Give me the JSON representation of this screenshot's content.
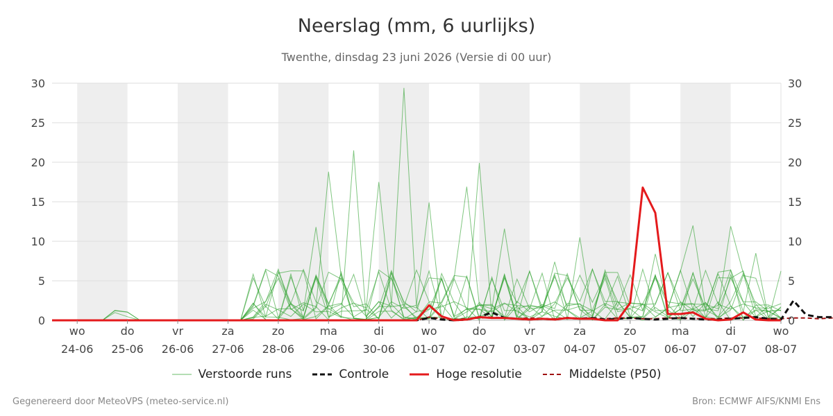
{
  "chart_data": {
    "type": "line",
    "title": "Neerslag (mm, 6 uurlijks)",
    "subtitle": "Twenthe, dinsdag 23 juni 2026 (Versie di 00 uur)",
    "ylim": [
      0,
      30
    ],
    "yticks": [
      0,
      5,
      10,
      15,
      20,
      25,
      30
    ],
    "grid": true,
    "legend_position": "bottom",
    "xlim": [
      "2026-06-23T12:00",
      "2026-07-08T00:00"
    ],
    "x_ticks": [
      {
        "day": "wo",
        "date": "24-06",
        "x": "2026-06-24T00:00"
      },
      {
        "day": "do",
        "date": "25-06",
        "x": "2026-06-25T00:00"
      },
      {
        "day": "vr",
        "date": "26-06",
        "x": "2026-06-26T00:00"
      },
      {
        "day": "za",
        "date": "27-06",
        "x": "2026-06-27T00:00"
      },
      {
        "day": "zo",
        "date": "28-06",
        "x": "2026-06-28T00:00"
      },
      {
        "day": "ma",
        "date": "29-06",
        "x": "2026-06-29T00:00"
      },
      {
        "day": "di",
        "date": "30-06",
        "x": "2026-06-30T00:00"
      },
      {
        "day": "wo",
        "date": "01-07",
        "x": "2026-07-01T00:00"
      },
      {
        "day": "do",
        "date": "02-07",
        "x": "2026-07-02T00:00"
      },
      {
        "day": "vr",
        "date": "03-07",
        "x": "2026-07-03T00:00"
      },
      {
        "day": "za",
        "date": "04-07",
        "x": "2026-07-04T00:00"
      },
      {
        "day": "zo",
        "date": "05-07",
        "x": "2026-07-05T00:00"
      },
      {
        "day": "ma",
        "date": "06-07",
        "x": "2026-07-06T00:00"
      },
      {
        "day": "di",
        "date": "07-07",
        "x": "2026-07-07T00:00"
      },
      {
        "day": "wo",
        "date": "08-07",
        "x": "2026-07-08T00:00"
      }
    ],
    "shaded_days": [
      "2026-06-24",
      "2026-06-26",
      "2026-06-28",
      "2026-06-30",
      "2026-07-02",
      "2026-07-04",
      "2026-07-06"
    ],
    "x_start": "2026-06-23T12:00",
    "x_step_hours": 6,
    "series": [
      {
        "name": "Hoge resolutie",
        "color": "#e41a1c",
        "style": "solid",
        "values": [
          0,
          0,
          0,
          0,
          0,
          0,
          0,
          0,
          0,
          0,
          0,
          0,
          0,
          0,
          0,
          0,
          0,
          0,
          0,
          0,
          0,
          0,
          0,
          0,
          0,
          0,
          0,
          0,
          0,
          0,
          1.9,
          0.5,
          0,
          0.1,
          0.4,
          0.3,
          0.3,
          0.2,
          0.1,
          0.2,
          0.1,
          0.3,
          0.2,
          0.2,
          0,
          0,
          2.2,
          16.8,
          13.6,
          0.8,
          0.8,
          1.0,
          0.2,
          0,
          0.1,
          1.0,
          0.1,
          0,
          0
        ]
      },
      {
        "name": "Controle",
        "color": "#111111",
        "style": "dashed",
        "values": [
          0,
          0,
          0,
          0,
          0,
          0,
          0,
          0,
          0,
          0,
          0,
          0,
          0,
          0,
          0,
          0,
          0,
          0,
          0,
          0,
          0,
          0,
          0,
          0,
          0,
          0,
          0,
          0,
          0,
          0,
          0.3,
          0.1,
          0,
          0.1,
          0.4,
          1.0,
          0.3,
          0.2,
          0.1,
          0.2,
          0.1,
          0.3,
          0.2,
          0.3,
          0.1,
          0.2,
          0.3,
          0.2,
          0.1,
          0.2,
          0.3,
          0.2,
          0.1,
          0.1,
          0.2,
          0.3,
          0.4,
          0.2,
          0.1,
          2.5,
          0.7,
          0.4,
          0.4,
          0.3,
          1.0,
          1.5,
          0.2,
          0.1,
          0.1,
          1.2,
          0.8,
          0.1,
          0.1,
          0.2,
          0.5,
          0.7,
          0.1,
          0.1,
          0.1,
          0.2,
          0.3
        ]
      },
      {
        "name": "Middelste (P50)",
        "color": "#a01010",
        "style": "dashed",
        "values": [
          0,
          0,
          0,
          0,
          0,
          0,
          0,
          0,
          0,
          0,
          0,
          0,
          0,
          0,
          0,
          0,
          0,
          0,
          0,
          0,
          0,
          0,
          0,
          0,
          0,
          0,
          0,
          0,
          0,
          0,
          0.4,
          0.2,
          0.1,
          0.2,
          0.3,
          0.4,
          0.3,
          0.2,
          0.3,
          0.2,
          0.2,
          0.3,
          0.2,
          0.3,
          0.2,
          0.3,
          0.3,
          0.2,
          0.2,
          0.3,
          0.3,
          0.2,
          0.2,
          0.2,
          0.3,
          0.3,
          0.3,
          0.2,
          0.2,
          0.3,
          0.3,
          0.2,
          0.3,
          0.3,
          0.3,
          0.3,
          0.2,
          0.2,
          0.2,
          0.3,
          0.3,
          0.2,
          0.2,
          0.2,
          0.3,
          0.3,
          0.2,
          0.2,
          0.2,
          0.2,
          0.2
        ]
      }
    ],
    "ensemble": {
      "name": "Verstoorde runs",
      "color": "#2ca02c",
      "member_count": 12,
      "peaks": [
        {
          "x": "2026-06-28T00:00",
          "value": 5.6
        },
        {
          "x": "2026-06-28T18:00",
          "value": 11.8
        },
        {
          "x": "2026-06-29T00:00",
          "value": 18.8
        },
        {
          "x": "2026-06-29T12:00",
          "value": 21.5
        },
        {
          "x": "2026-06-30T00:00",
          "value": 17.5
        },
        {
          "x": "2026-06-30T12:00",
          "value": 29.4
        },
        {
          "x": "2026-07-01T00:00",
          "value": 14.9
        },
        {
          "x": "2026-07-01T18:00",
          "value": 16.9
        },
        {
          "x": "2026-07-02T00:00",
          "value": 19.9
        },
        {
          "x": "2026-07-02T12:00",
          "value": 11.6
        },
        {
          "x": "2026-07-03T12:00",
          "value": 7.4
        },
        {
          "x": "2026-07-04T00:00",
          "value": 10.5
        },
        {
          "x": "2026-07-05T12:00",
          "value": 8.4
        },
        {
          "x": "2026-07-06T06:00",
          "value": 12.0
        },
        {
          "x": "2026-07-07T00:00",
          "value": 11.9
        },
        {
          "x": "2026-07-07T12:00",
          "value": 8.5
        }
      ]
    }
  },
  "legend": {
    "ensemble": "Verstoorde runs",
    "control": "Controle",
    "highres": "Hoge resolutie",
    "median": "Middelste (P50)"
  },
  "footer": {
    "left": "Gegenereerd door MeteoVPS (meteo-service.nl)",
    "right": "Bron: ECMWF AIFS/KNMI Ens"
  }
}
